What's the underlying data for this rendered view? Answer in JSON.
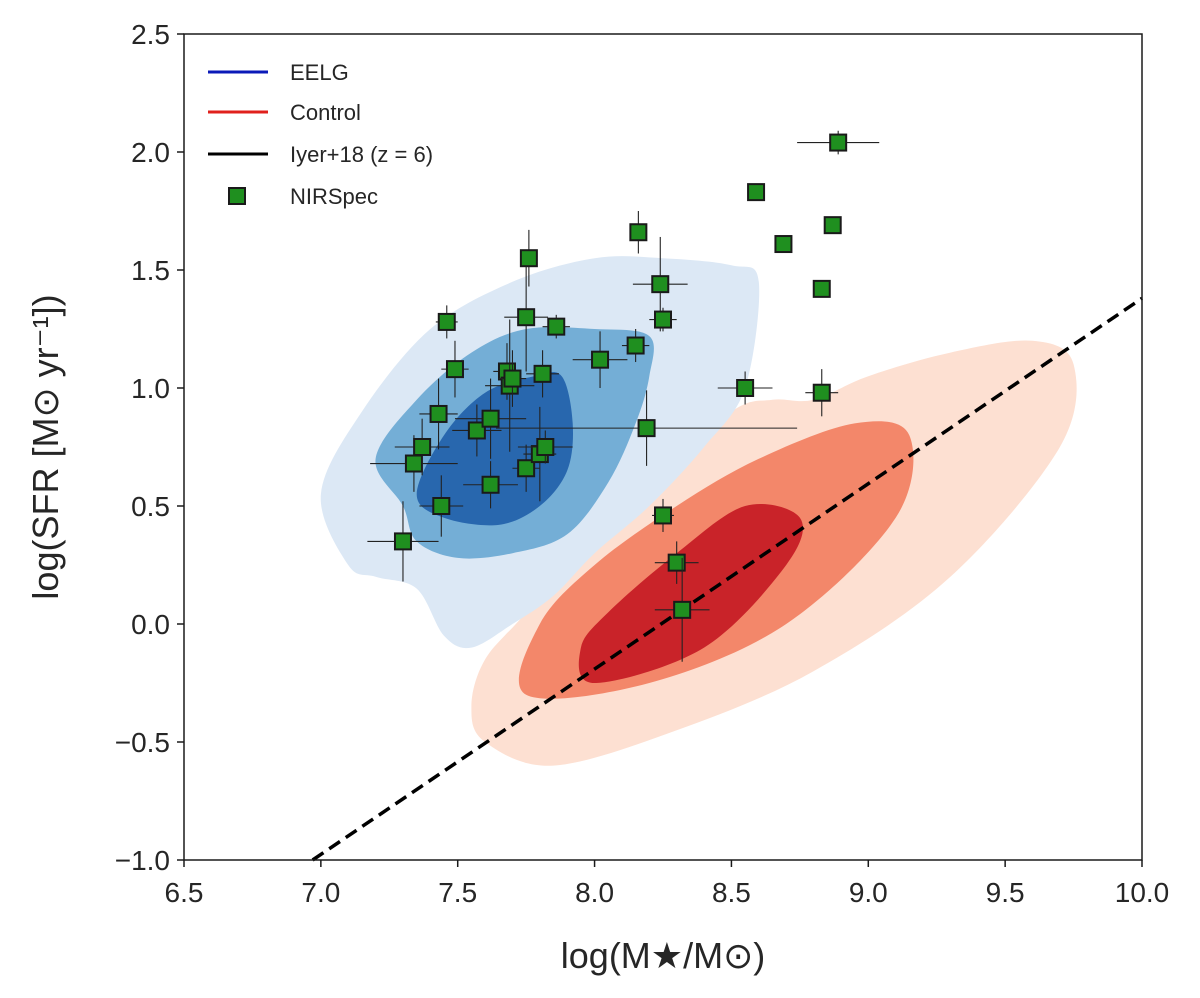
{
  "chart_data": {
    "type": "scatter",
    "xlabel": "log(M★/M⊙)",
    "ylabel": "log(SFR [M⊙ yr⁻¹])",
    "xlim": [
      6.5,
      10.0
    ],
    "ylim": [
      -1.0,
      2.5
    ],
    "x_ticks": [
      "6.5",
      "7.0",
      "7.5",
      "8.0",
      "8.5",
      "9.0",
      "9.5",
      "10.0"
    ],
    "y_ticks": [
      "−1.0",
      "−0.5",
      "0.0",
      "0.5",
      "1.0",
      "1.5",
      "2.0",
      "2.5"
    ],
    "legend": [
      {
        "label": "EELG",
        "kind": "line",
        "color": "#0b1ab8"
      },
      {
        "label": "Control",
        "kind": "line",
        "color": "#e0201c"
      },
      {
        "label": "Iyer+18 (z = 6)",
        "kind": "line",
        "color": "#000000"
      },
      {
        "label": "NIRSpec",
        "kind": "marker",
        "color": "#1f8f1f"
      }
    ],
    "legend_placement": "top-left",
    "iyer_line": {
      "points": [
        [
          6.97,
          -1.0
        ],
        [
          10.0,
          1.38
        ]
      ],
      "style": "dashed",
      "color": "#000000"
    },
    "contours": {
      "eelg": {
        "colors": [
          "#dce8f5",
          "#74aed6",
          "#2867ae"
        ],
        "levels": [
          [
            [
              7.1,
              0.25
            ],
            [
              7.0,
              0.55
            ],
            [
              7.15,
              0.9
            ],
            [
              7.4,
              1.25
            ],
            [
              7.7,
              1.45
            ],
            [
              8.0,
              1.55
            ],
            [
              8.25,
              1.55
            ],
            [
              8.5,
              1.52
            ],
            [
              8.6,
              1.45
            ],
            [
              8.55,
              1.0
            ],
            [
              8.4,
              0.75
            ],
            [
              8.2,
              0.5
            ],
            [
              8.0,
              0.3
            ],
            [
              7.85,
              0.12
            ],
            [
              7.7,
              0.0
            ],
            [
              7.55,
              -0.1
            ],
            [
              7.45,
              -0.05
            ],
            [
              7.35,
              0.15
            ],
            [
              7.2,
              0.2
            ]
          ],
          [
            [
              7.3,
              0.5
            ],
            [
              7.2,
              0.7
            ],
            [
              7.35,
              0.95
            ],
            [
              7.55,
              1.15
            ],
            [
              7.75,
              1.25
            ],
            [
              8.0,
              1.25
            ],
            [
              8.2,
              1.22
            ],
            [
              8.2,
              1.05
            ],
            [
              8.15,
              0.85
            ],
            [
              8.05,
              0.6
            ],
            [
              7.9,
              0.38
            ],
            [
              7.7,
              0.3
            ],
            [
              7.5,
              0.28
            ],
            [
              7.35,
              0.35
            ]
          ],
          [
            [
              7.35,
              0.55
            ],
            [
              7.45,
              0.8
            ],
            [
              7.6,
              0.98
            ],
            [
              7.78,
              1.05
            ],
            [
              7.88,
              1.05
            ],
            [
              7.92,
              0.85
            ],
            [
              7.9,
              0.65
            ],
            [
              7.8,
              0.5
            ],
            [
              7.65,
              0.42
            ],
            [
              7.45,
              0.45
            ]
          ]
        ]
      },
      "control": {
        "colors": [
          "#fde0d2",
          "#f3876a",
          "#c92329"
        ],
        "levels": [
          [
            [
              7.55,
              -0.35
            ],
            [
              7.6,
              -0.5
            ],
            [
              7.85,
              -0.6
            ],
            [
              8.3,
              -0.45
            ],
            [
              8.8,
              -0.2
            ],
            [
              9.3,
              0.2
            ],
            [
              9.7,
              0.75
            ],
            [
              9.75,
              1.1
            ],
            [
              9.6,
              1.2
            ],
            [
              9.3,
              1.15
            ],
            [
              9.0,
              1.05
            ],
            [
              8.8,
              0.95
            ],
            [
              8.65,
              0.95
            ],
            [
              8.5,
              0.9
            ],
            [
              8.2,
              0.6
            ],
            [
              7.95,
              0.35
            ],
            [
              7.75,
              0.05
            ],
            [
              7.6,
              -0.15
            ]
          ],
          [
            [
              7.75,
              -0.3
            ],
            [
              8.2,
              -0.25
            ],
            [
              8.7,
              0.0
            ],
            [
              9.1,
              0.45
            ],
            [
              9.15,
              0.8
            ],
            [
              8.95,
              0.85
            ],
            [
              8.6,
              0.7
            ],
            [
              8.3,
              0.5
            ],
            [
              8.0,
              0.25
            ],
            [
              7.8,
              -0.0
            ]
          ],
          [
            [
              8.0,
              -0.25
            ],
            [
              8.4,
              -0.1
            ],
            [
              8.7,
              0.25
            ],
            [
              8.75,
              0.45
            ],
            [
              8.55,
              0.5
            ],
            [
              8.3,
              0.3
            ],
            [
              8.05,
              0.05
            ],
            [
              7.95,
              -0.1
            ]
          ]
        ]
      }
    },
    "nirspec": [
      {
        "x": 7.3,
        "y": 0.35,
        "xerr": 0.13,
        "yerr": 0.17
      },
      {
        "x": 7.34,
        "y": 0.68,
        "xerr": 0.16,
        "yerr": 0.12
      },
      {
        "x": 7.37,
        "y": 0.75,
        "xerr": 0.1,
        "yerr": 0.12
      },
      {
        "x": 7.43,
        "y": 0.89,
        "xerr": 0.07,
        "yerr": 0.15
      },
      {
        "x": 7.44,
        "y": 0.5,
        "xerr": 0.08,
        "yerr": 0.13
      },
      {
        "x": 7.46,
        "y": 1.28,
        "xerr": 0.04,
        "yerr": 0.07
      },
      {
        "x": 7.49,
        "y": 1.08,
        "xerr": 0.05,
        "yerr": 0.12
      },
      {
        "x": 7.57,
        "y": 0.82,
        "xerr": 0.09,
        "yerr": 0.11
      },
      {
        "x": 7.62,
        "y": 0.59,
        "xerr": 0.1,
        "yerr": 0.1
      },
      {
        "x": 7.62,
        "y": 0.87,
        "xerr": 0.13,
        "yerr": 0.17
      },
      {
        "x": 7.68,
        "y": 1.07,
        "xerr": 0.05,
        "yerr": 0.12
      },
      {
        "x": 7.69,
        "y": 1.01,
        "xerr": 0.09,
        "yerr": 0.28
      },
      {
        "x": 7.7,
        "y": 1.04,
        "xerr": 0.05,
        "yerr": 0.12
      },
      {
        "x": 7.75,
        "y": 0.66,
        "xerr": 0.05,
        "yerr": 0.1
      },
      {
        "x": 7.75,
        "y": 1.3,
        "xerr": 0.08,
        "yerr": 0.23
      },
      {
        "x": 7.76,
        "y": 1.55,
        "xerr": 0.02,
        "yerr": 0.12
      },
      {
        "x": 7.8,
        "y": 0.72,
        "xerr": 0.06,
        "yerr": 0.2
      },
      {
        "x": 7.81,
        "y": 1.06,
        "xerr": 0.06,
        "yerr": 0.1
      },
      {
        "x": 7.82,
        "y": 0.75,
        "xerr": 0.1,
        "yerr": 0.07
      },
      {
        "x": 7.86,
        "y": 1.26,
        "xerr": 0.05,
        "yerr": 0.05
      },
      {
        "x": 8.02,
        "y": 1.12,
        "xerr": 0.1,
        "yerr": 0.12
      },
      {
        "x": 8.15,
        "y": 1.18,
        "xerr": 0.05,
        "yerr": 0.07
      },
      {
        "x": 8.16,
        "y": 1.66,
        "xerr": 0.03,
        "yerr": 0.09
      },
      {
        "x": 8.19,
        "y": 0.83,
        "xerr": 0.55,
        "yerr": 0.16
      },
      {
        "x": 8.24,
        "y": 1.44,
        "xerr": 0.1,
        "yerr": 0.2
      },
      {
        "x": 8.25,
        "y": 1.29,
        "xerr": 0.05,
        "yerr": 0.05
      },
      {
        "x": 8.25,
        "y": 0.46,
        "xerr": 0.04,
        "yerr": 0.07
      },
      {
        "x": 8.3,
        "y": 0.26,
        "xerr": 0.08,
        "yerr": 0.09
      },
      {
        "x": 8.32,
        "y": 0.06,
        "xerr": 0.1,
        "yerr": 0.22
      },
      {
        "x": 8.55,
        "y": 1.0,
        "xerr": 0.1,
        "yerr": 0.07
      },
      {
        "x": 8.59,
        "y": 1.83,
        "xerr": 0.03,
        "yerr": 0.03
      },
      {
        "x": 8.69,
        "y": 1.61,
        "xerr": 0.03,
        "yerr": 0.03
      },
      {
        "x": 8.83,
        "y": 1.42,
        "xerr": 0.03,
        "yerr": 0.03
      },
      {
        "x": 8.83,
        "y": 0.98,
        "xerr": 0.06,
        "yerr": 0.1
      },
      {
        "x": 8.87,
        "y": 1.69,
        "xerr": 0.03,
        "yerr": 0.03
      },
      {
        "x": 8.89,
        "y": 2.04,
        "xerr": 0.15,
        "yerr": 0.05
      }
    ]
  }
}
